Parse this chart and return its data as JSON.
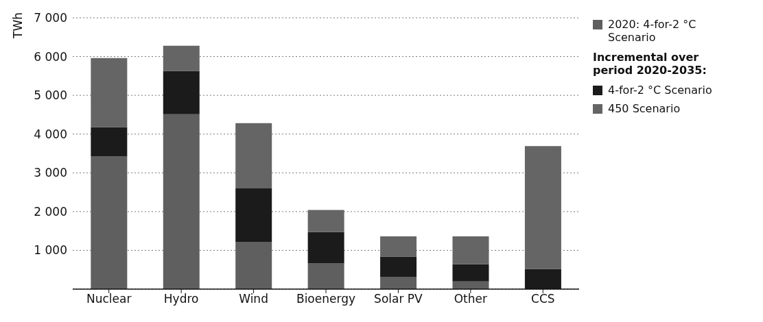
{
  "chart_data": {
    "type": "bar",
    "stacked": true,
    "ylabel": "TWh",
    "legend_title": "Incremental over period 2020-2035:",
    "categories": [
      "Nuclear",
      "Hydro",
      "Wind",
      "Bioenergy",
      "Solar PV",
      "Other",
      "CCS"
    ],
    "series": [
      {
        "name": "2020: 4-for-2 °C Scenario",
        "color": "#5f5f5f",
        "values": [
          3420,
          4510,
          1220,
          670,
          320,
          200,
          0
        ]
      },
      {
        "name": "4-for-2 °C Scenario",
        "color": "#1b1b1b",
        "values": [
          760,
          1120,
          1380,
          800,
          520,
          440,
          520
        ]
      },
      {
        "name": "450 Scenario",
        "color": "#656565",
        "values": [
          1780,
          650,
          1680,
          570,
          520,
          720,
          3170
        ]
      }
    ],
    "ylim": [
      0,
      7000
    ],
    "yticks": [
      {
        "value": 1000,
        "label": "1 000"
      },
      {
        "value": 2000,
        "label": "2 000"
      },
      {
        "value": 3000,
        "label": "3 000"
      },
      {
        "value": 4000,
        "label": "4 000"
      },
      {
        "value": 5000,
        "label": "5 000"
      },
      {
        "value": 6000,
        "label": "6 000"
      },
      {
        "value": 7000,
        "label": "7 000"
      }
    ],
    "grid": "y",
    "legend": "right"
  }
}
